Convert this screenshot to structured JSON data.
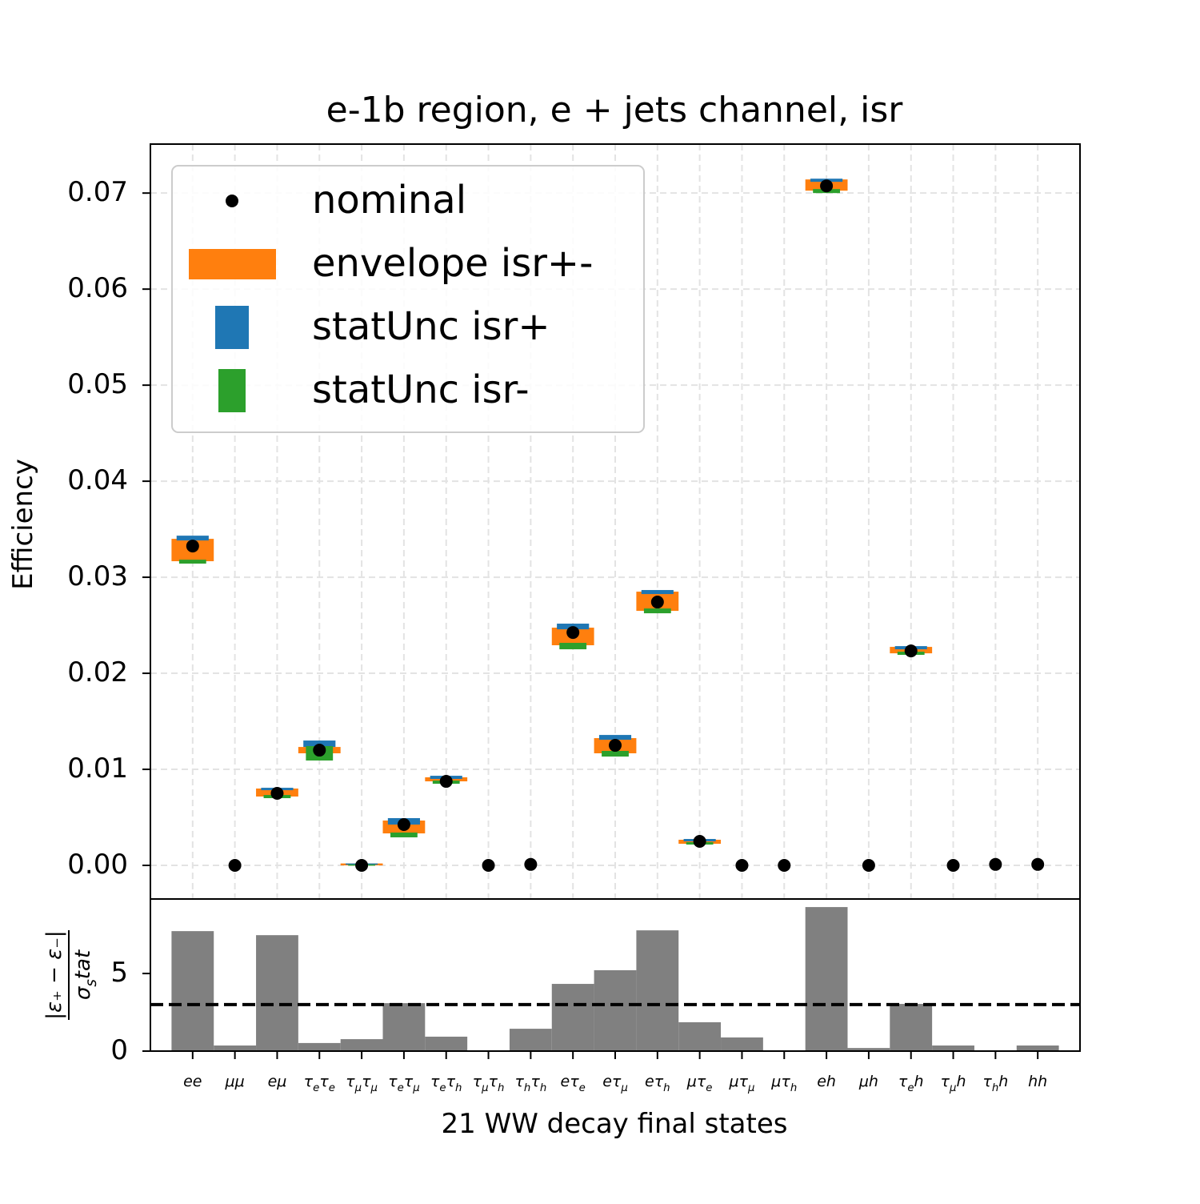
{
  "chart_data": [
    {
      "type": "envelope",
      "title": "e-1b region, e + jets channel, isr",
      "ylabel": "Efficiency",
      "ylim": [
        -0.0035,
        0.0751
      ],
      "yticks": [
        {
          "value": 0,
          "label": "0.00"
        },
        0.01,
        0.02,
        0.03,
        0.04,
        0.05,
        0.06,
        0.07
      ],
      "grid": true,
      "legend": "upper left",
      "series": [
        {
          "name": "nominal",
          "color": "#000000",
          "values": [
            0.03325,
            0,
            0.0075,
            0.012,
            0,
            0.00425,
            0.00875,
            0,
            0.0001,
            0.02425,
            0.0125,
            0.02742,
            0.0025,
            0,
            0,
            0.07075,
            0,
            0.02233,
            0,
            0.0001,
            0.0001
          ]
        },
        {
          "name": "envelope isr+-",
          "color": "#ff7f0e",
          "low": [
            0.03167,
            null,
            0.00717,
            0.01167,
            0,
            0.00333,
            0.00875,
            null,
            null,
            0.02292,
            0.01167,
            0.0265,
            0.00225,
            null,
            null,
            0.07025,
            null,
            0.02208,
            null,
            null,
            null
          ],
          "high": [
            0.034,
            null,
            0.008,
            0.01233,
            0.0002,
            0.00467,
            0.00917,
            null,
            null,
            0.02475,
            0.01325,
            0.0285,
            0.00267,
            null,
            null,
            0.07142,
            null,
            0.02275,
            null,
            null,
            null
          ]
        },
        {
          "name": "statUnc isr+",
          "color": "#1f77b4",
          "low": [
            0.03383,
            null,
            0.00783,
            0.01233,
            0.0001,
            0.00425,
            0.009,
            null,
            null,
            0.02458,
            0.01308,
            0.02825,
            0.0025,
            null,
            null,
            0.07117,
            null,
            0.0225,
            null,
            null,
            null
          ],
          "high": [
            0.03433,
            null,
            0.00808,
            0.013,
            0.0002,
            0.00492,
            0.00933,
            null,
            null,
            0.02517,
            0.01358,
            0.02867,
            0.00275,
            null,
            null,
            0.0715,
            null,
            0.02283,
            null,
            null,
            null
          ]
        },
        {
          "name": "statUnc isr-",
          "color": "#2ca02c",
          "low": [
            0.03142,
            null,
            0.007,
            0.01092,
            0,
            0.00292,
            0.0085,
            null,
            null,
            0.0225,
            0.01133,
            0.02625,
            0.00217,
            null,
            null,
            0.07,
            null,
            0.02192,
            null,
            null,
            null
          ],
          "high": [
            0.03183,
            null,
            0.00733,
            0.01242,
            0.0001,
            0.00342,
            0.00883,
            null,
            null,
            0.02317,
            0.01192,
            0.02675,
            0.00242,
            null,
            null,
            0.07042,
            null,
            0.02225,
            null,
            null,
            null
          ]
        }
      ]
    },
    {
      "type": "bar",
      "xlabel": "21 WW decay final states",
      "ylabel_numerator": "|ε₊ − ε₋|",
      "ylabel_denominator": "σ_stat",
      "categories": [
        "ee",
        "μμ",
        "eμ",
        "τ_eτ_e",
        "τ_μτ_μ",
        "τ_eτ_μ",
        "τ_eτ_h",
        "τ_μτ_h",
        "τ_hτ_h",
        "eτ_e",
        "eτ_μ",
        "eτ_h",
        "μτ_e",
        "μτ_μ",
        "μτ_h",
        "eh",
        "μh",
        "τ_eh",
        "τ_μh",
        "τ_hh",
        "hh"
      ],
      "values": [
        7.73,
        0.36,
        7.47,
        0.52,
        0.77,
        3.09,
        0.93,
        0,
        1.44,
        4.33,
        5.21,
        7.78,
        1.86,
        0.88,
        0.05,
        9.28,
        0.2,
        3.04,
        0.36,
        0.05,
        0.36
      ],
      "color": "#808080",
      "threshold": 3,
      "ylim": [
        0,
        9.8
      ],
      "yticks": [
        0,
        5
      ]
    }
  ]
}
